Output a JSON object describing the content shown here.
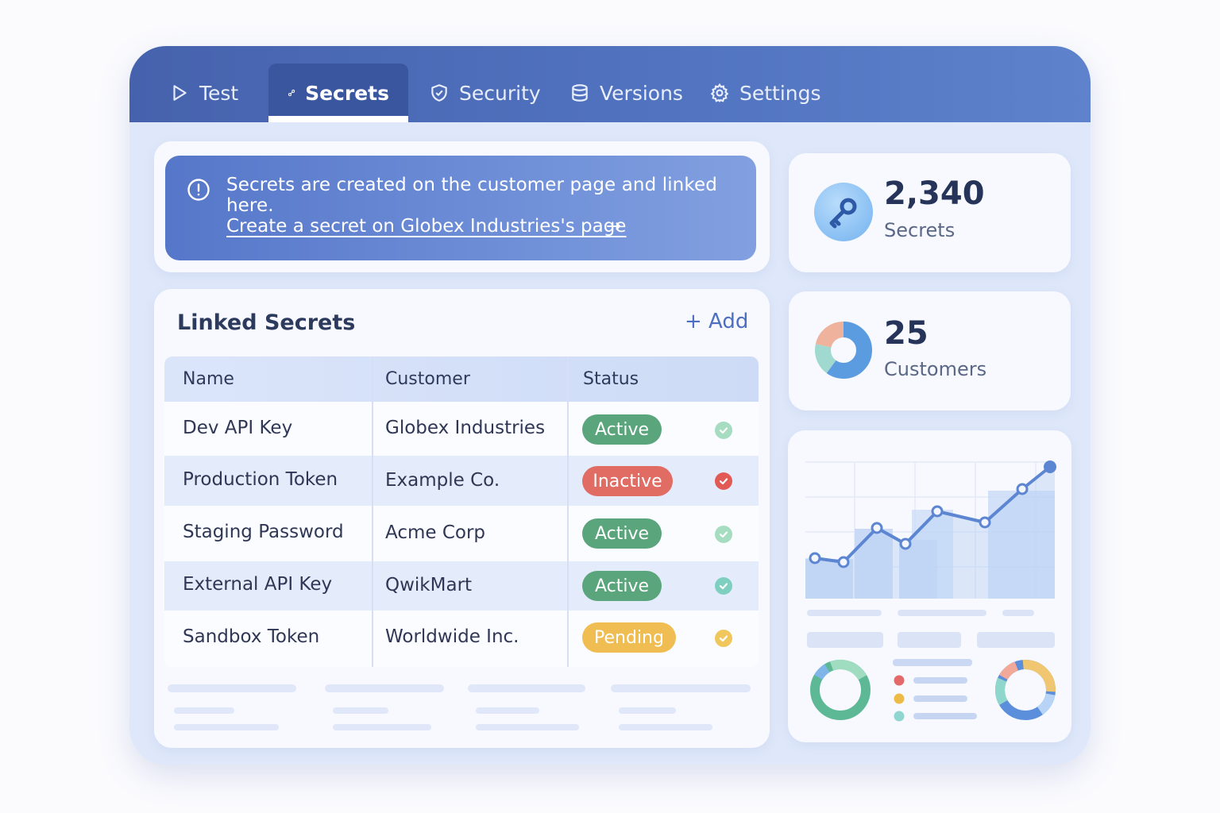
{
  "tabs": [
    {
      "label": "Test",
      "icon": "play-icon"
    },
    {
      "label": "Secrets",
      "icon": "key-icon",
      "active": true
    },
    {
      "label": "Security",
      "icon": "shield-icon"
    },
    {
      "label": "Versions",
      "icon": "database-icon"
    },
    {
      "label": "Settings",
      "icon": "gear-icon"
    }
  ],
  "banner": {
    "message": "Secrets are created on the customer page and linked here.",
    "link_text": "Create a secret on Globex Industries's page",
    "arrow": "→"
  },
  "linked_secrets": {
    "title": "Linked Secrets",
    "add_label": "+ Add",
    "columns": [
      "Name",
      "Customer",
      "Status"
    ],
    "rows": [
      {
        "name": "Dev API Key",
        "customer": "Globex Industries",
        "status": "Active"
      },
      {
        "name": "Production Token",
        "customer": "Example Co.",
        "status": "Inactive"
      },
      {
        "name": "Staging Password",
        "customer": "Acme Corp",
        "status": "Active"
      },
      {
        "name": "External API Key",
        "customer": "QwikMart",
        "status": "Active"
      },
      {
        "name": "Sandbox Token",
        "customer": "Worldwide Inc.",
        "status": "Pending"
      }
    ]
  },
  "stats": {
    "secrets": {
      "value": "2,340",
      "label": "Secrets"
    },
    "customers": {
      "value": "25",
      "label": "Customers"
    }
  },
  "colors": {
    "active": "#5aa57c",
    "inactive": "#e06c64",
    "pending": "#efbd52",
    "accent": "#4d6fc2"
  }
}
